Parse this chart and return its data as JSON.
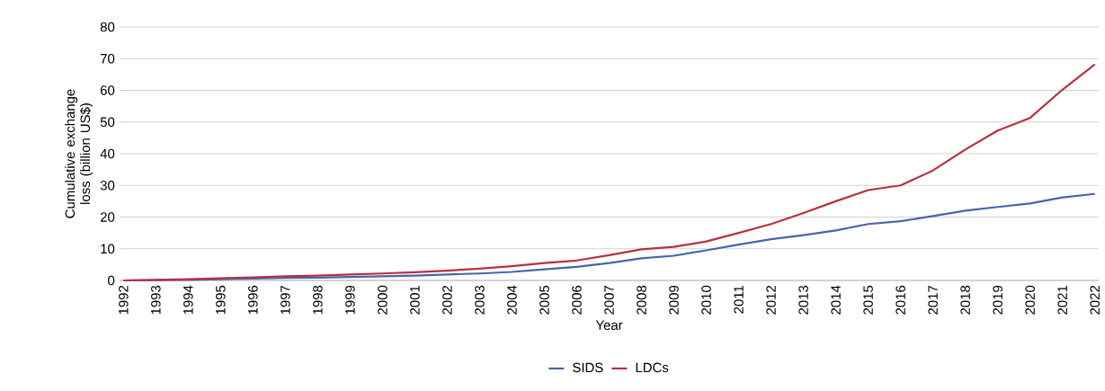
{
  "chart_data": {
    "type": "line",
    "xlabel": "Year",
    "ylabel": "Cumulative exchange loss (billion US$)",
    "categories": [
      "1992",
      "1993",
      "1994",
      "1995",
      "1996",
      "1997",
      "1998",
      "1999",
      "2000",
      "2001",
      "2002",
      "2003",
      "2004",
      "2005",
      "2006",
      "2007",
      "2008",
      "2009",
      "2010",
      "2011",
      "2012",
      "2013",
      "2014",
      "2015",
      "2016",
      "2017",
      "2018",
      "2019",
      "2020",
      "2021",
      "2022"
    ],
    "series": [
      {
        "name": "SIDS",
        "color": "#4a63ad",
        "values": [
          0,
          0.1,
          0.2,
          0.4,
          0.6,
          0.8,
          0.9,
          1.1,
          1.3,
          1.5,
          1.9,
          2.2,
          2.7,
          3.5,
          4.3,
          5.5,
          7.0,
          7.8,
          9.5,
          11.3,
          13.0,
          14.3,
          15.8,
          17.8,
          18.7,
          20.3,
          22.0,
          23.2,
          24.3,
          26.2,
          27.3
        ]
      },
      {
        "name": "LDCs",
        "color": "#b83042",
        "values": [
          0,
          0.2,
          0.4,
          0.7,
          1.0,
          1.3,
          1.5,
          1.9,
          2.2,
          2.6,
          3.1,
          3.7,
          4.5,
          5.5,
          6.3,
          8.0,
          9.8,
          10.6,
          12.3,
          15.0,
          17.8,
          21.3,
          25.0,
          28.5,
          30.0,
          34.7,
          41.3,
          47.3,
          51.3,
          60.2,
          68.2
        ]
      }
    ],
    "ylim": [
      0,
      80
    ],
    "yticks": [
      0,
      10,
      20,
      30,
      40,
      50,
      60,
      70,
      80
    ],
    "grid": "y",
    "legend": "bottom"
  }
}
